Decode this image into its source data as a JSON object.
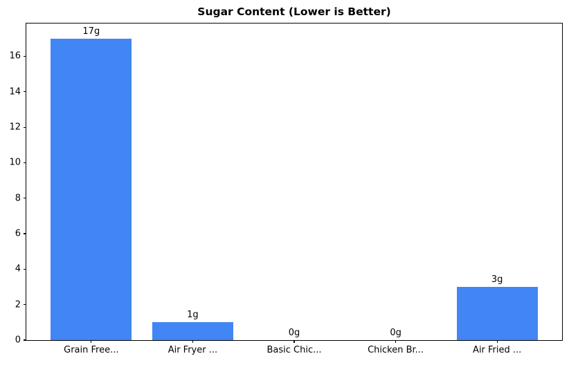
{
  "chart_data": {
    "type": "bar",
    "title": "Sugar Content (Lower is Better)",
    "categories": [
      "Grain Free...",
      "Air Fryer ...",
      "Basic Chic...",
      "Chicken Br...",
      "Air Fried ..."
    ],
    "values": [
      17,
      1,
      0,
      0,
      3
    ],
    "bar_labels": [
      "17g",
      "1g",
      "0g",
      "0g",
      "3g"
    ],
    "yticks": [
      0,
      2,
      4,
      6,
      8,
      10,
      12,
      14,
      16
    ],
    "ylim": [
      0,
      17.85
    ],
    "xlabel": "",
    "ylabel": "",
    "grid": false,
    "legend_position": "none",
    "bar_color": "#4285F4",
    "spine_color": "#000000",
    "background_color": "#ffffff"
  }
}
